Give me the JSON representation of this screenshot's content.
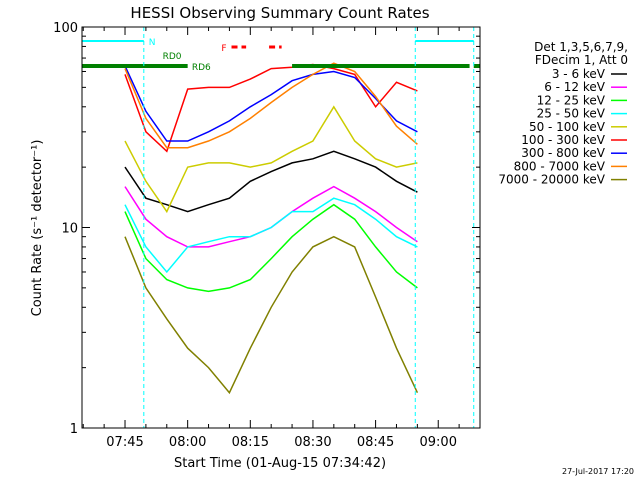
{
  "chart_data": {
    "type": "line",
    "title": "HESSI Observing Summary Count Rates",
    "xlabel": "Start Time (01-Aug-15 07:34:42)",
    "ylabel": "Count Rate (s⁻¹ detector⁻¹)",
    "yscale": "log",
    "ylim": [
      1,
      100
    ],
    "xlim": [
      "07:34:42",
      "09:10:00"
    ],
    "x_tick_labels": [
      "07:45",
      "08:00",
      "08:15",
      "08:30",
      "08:45",
      "09:00"
    ],
    "y_tick_labels": [
      "1",
      "10",
      "100"
    ],
    "grid": false,
    "legend": {
      "position": "right",
      "header": [
        "Det 1,3,5,6,7,9,",
        "FDecim 1, Att 0"
      ]
    },
    "x": [
      "07:42",
      "07:45",
      "07:50",
      "07:55",
      "08:00",
      "08:05",
      "08:10",
      "08:15",
      "08:20",
      "08:25",
      "08:30",
      "08:35",
      "08:40",
      "08:45",
      "08:50",
      "08:55",
      "09:00"
    ],
    "series": [
      {
        "name": "3 - 6 keV",
        "color": "#000000",
        "values": [
          null,
          20,
          14,
          13,
          12,
          13,
          14,
          17,
          19,
          21,
          22,
          24,
          22,
          20,
          17,
          15,
          null
        ]
      },
      {
        "name": "6 - 12 keV",
        "color": "#ff00ff",
        "values": [
          null,
          16,
          11,
          9,
          8,
          8,
          8.5,
          9,
          10,
          12,
          14,
          16,
          14,
          12,
          10,
          8.5,
          null
        ]
      },
      {
        "name": "12 - 25 keV",
        "color": "#00ff00",
        "values": [
          null,
          12,
          7,
          5.5,
          5,
          4.8,
          5,
          5.5,
          7,
          9,
          11,
          13,
          11,
          8,
          6,
          5,
          null
        ]
      },
      {
        "name": "25 - 50 keV",
        "color": "#00ffff",
        "values": [
          null,
          13,
          8,
          6,
          8,
          8.5,
          9,
          9,
          10,
          12,
          12,
          14,
          13,
          11,
          9,
          8,
          null
        ]
      },
      {
        "name": "50 - 100 keV",
        "color": "#cccc00",
        "values": [
          null,
          27,
          17,
          12,
          20,
          21,
          21,
          20,
          21,
          24,
          27,
          40,
          27,
          22,
          20,
          21,
          null
        ]
      },
      {
        "name": "100 - 300 keV",
        "color": "#ff0000",
        "values": [
          null,
          58,
          30,
          24,
          49,
          50,
          50,
          55,
          62,
          63,
          65,
          62,
          58,
          40,
          53,
          48,
          null
        ]
      },
      {
        "name": "300 - 800 keV",
        "color": "#0000ff",
        "values": [
          null,
          64,
          38,
          27,
          27,
          30,
          34,
          40,
          46,
          54,
          58,
          60,
          56,
          44,
          34,
          30,
          null
        ]
      },
      {
        "name": "800 - 7000 keV",
        "color": "#ff8000",
        "values": [
          null,
          62,
          35,
          25,
          25,
          27,
          30,
          35,
          42,
          50,
          58,
          66,
          60,
          45,
          32,
          26,
          null
        ]
      },
      {
        "name": "7000 - 20000 keV",
        "color": "#808000",
        "values": [
          null,
          9,
          5,
          3.5,
          2.5,
          2,
          1.5,
          2.5,
          4,
          6,
          8,
          9,
          8,
          4.5,
          2.5,
          1.5,
          null
        ]
      }
    ],
    "annotations": [
      {
        "label": "N",
        "color": "#00ffff",
        "intervals": [
          [
            "07:34:42",
            "07:49:30"
          ],
          [
            "08:54:30",
            "09:08:30"
          ]
        ]
      },
      {
        "label": "F",
        "color": "#ff0000",
        "intervals": [
          [
            "08:10:30",
            "08:14:00"
          ],
          [
            "08:19:30",
            "08:22:30"
          ]
        ]
      },
      {
        "label": "RD0",
        "color": "#008000",
        "intervals": [
          [
            "07:34:42",
            "08:00:00"
          ],
          [
            "08:25:00",
            "09:07:30"
          ],
          [
            "09:08:30",
            "09:10:00"
          ]
        ]
      },
      {
        "label": "RD6",
        "color": "#008000",
        "intervals": [
          [
            "08:00:00",
            "08:25:00"
          ]
        ]
      }
    ],
    "vertical_markers": [
      {
        "time": "07:49:30",
        "color": "#00ffff",
        "style": "dashed"
      },
      {
        "time": "08:54:30",
        "color": "#00ffff",
        "style": "dashed"
      },
      {
        "time": "09:08:30",
        "color": "#00ffff",
        "style": "dashed"
      }
    ]
  },
  "footer_timestamp": "27-Jul-2017 17:20"
}
